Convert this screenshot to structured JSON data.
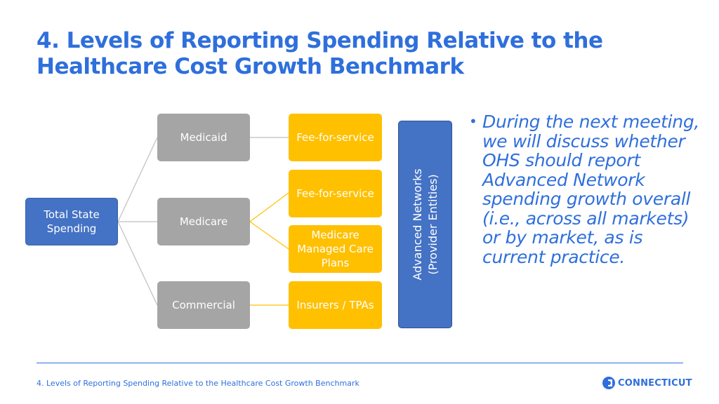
{
  "title": {
    "line1": "4. Levels of Reporting Spending Relative to the",
    "line2": "Healthcare Cost Growth Benchmark"
  },
  "diagram": {
    "root": "Total State Spending",
    "level1": {
      "medicaid": "Medicaid",
      "medicare": "Medicare",
      "commercial": "Commercial"
    },
    "level2": {
      "medicaid_ffs": "Fee-for-service",
      "medicare_ffs": "Fee-for-service",
      "medicare_mc_line1": "Medicare",
      "medicare_mc_line2": "Managed Care",
      "medicare_mc_line3": "Plans",
      "insurers": "Insurers / TPAs"
    },
    "networks_line1": "Advanced Networks",
    "networks_line2": "(Provider Entities)",
    "colors": {
      "root": "#4472c4",
      "level1": "#a5a5a5",
      "level2": "#ffc000",
      "networks": "#4472c4",
      "line_gray": "#bfbfbf",
      "line_yellow": "#ffc000"
    }
  },
  "bullet": {
    "text_line1": "During the next meeting,",
    "text_line2": "we will discuss whether",
    "text_line3": "OHS should report",
    "text_line4": "Advanced Network",
    "text_line5": "spending growth overall",
    "text_line6": "(i.e., across all markets)",
    "text_line7": "or by market, as is",
    "text_line8": "current practice."
  },
  "footer": {
    "text": "4. Levels of Reporting Spending Relative to the Healthcare Cost Growth Benchmark",
    "logo_text": "CONNECTICUT",
    "accent_color": "#2f6fdc"
  }
}
